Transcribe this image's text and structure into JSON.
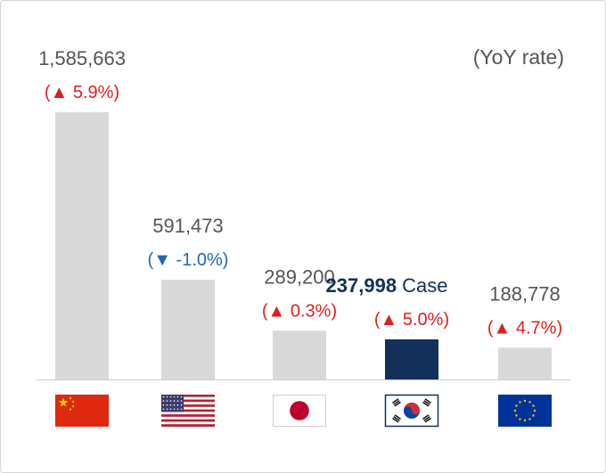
{
  "rate_note": "(YoY rate)",
  "chart_data": {
    "type": "bar",
    "title": "",
    "xlabel": "",
    "ylabel": "",
    "ylim": [
      0,
      1585663
    ],
    "categories": [
      "China",
      "United States",
      "Japan",
      "Korea",
      "European Union"
    ],
    "flag_icons": [
      "china-flag-icon",
      "usa-flag-icon",
      "japan-flag-icon",
      "korea-flag-icon",
      "eu-flag-icon"
    ],
    "values": [
      1585663,
      591473,
      289200,
      237998,
      188778
    ],
    "value_labels": [
      "1,585,663",
      "591,473",
      "289,200",
      "237,998",
      "188,778"
    ],
    "unit_label": "Case",
    "highlight_index": 3,
    "rate_labels": [
      "(▲ 5.9%)",
      "(▼ -1.0%)",
      "(▲ 0.3%)",
      "(▲ 5.0%)",
      "(▲ 4.7%)"
    ],
    "rate_directions": [
      "up",
      "down",
      "up",
      "up",
      "up"
    ],
    "colors": {
      "bar": "#d9d9d9",
      "bar_highlight": "#13305a",
      "value_text": "#555555",
      "highlight_text": "#13305a",
      "up": "#e01e1e",
      "down": "#1f68b1",
      "baseline": "#cccccc"
    }
  }
}
